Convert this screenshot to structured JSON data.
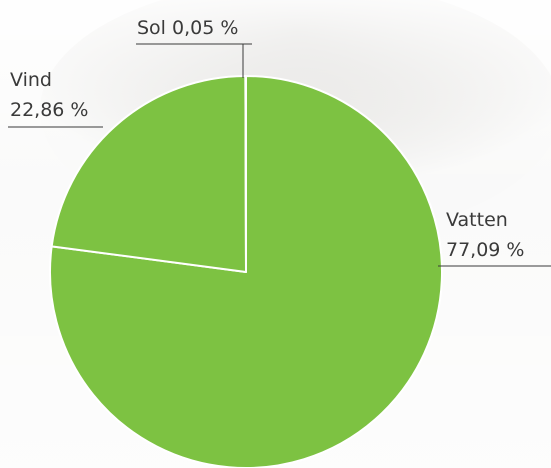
{
  "chart_data": {
    "type": "pie",
    "categories": [
      "Vatten",
      "Vind",
      "Sol"
    ],
    "values": [
      77.09,
      22.86,
      0.05
    ],
    "value_labels": [
      "77,09 %",
      "22,86 %",
      "0,05 %"
    ],
    "color": "#7dc242"
  }
}
